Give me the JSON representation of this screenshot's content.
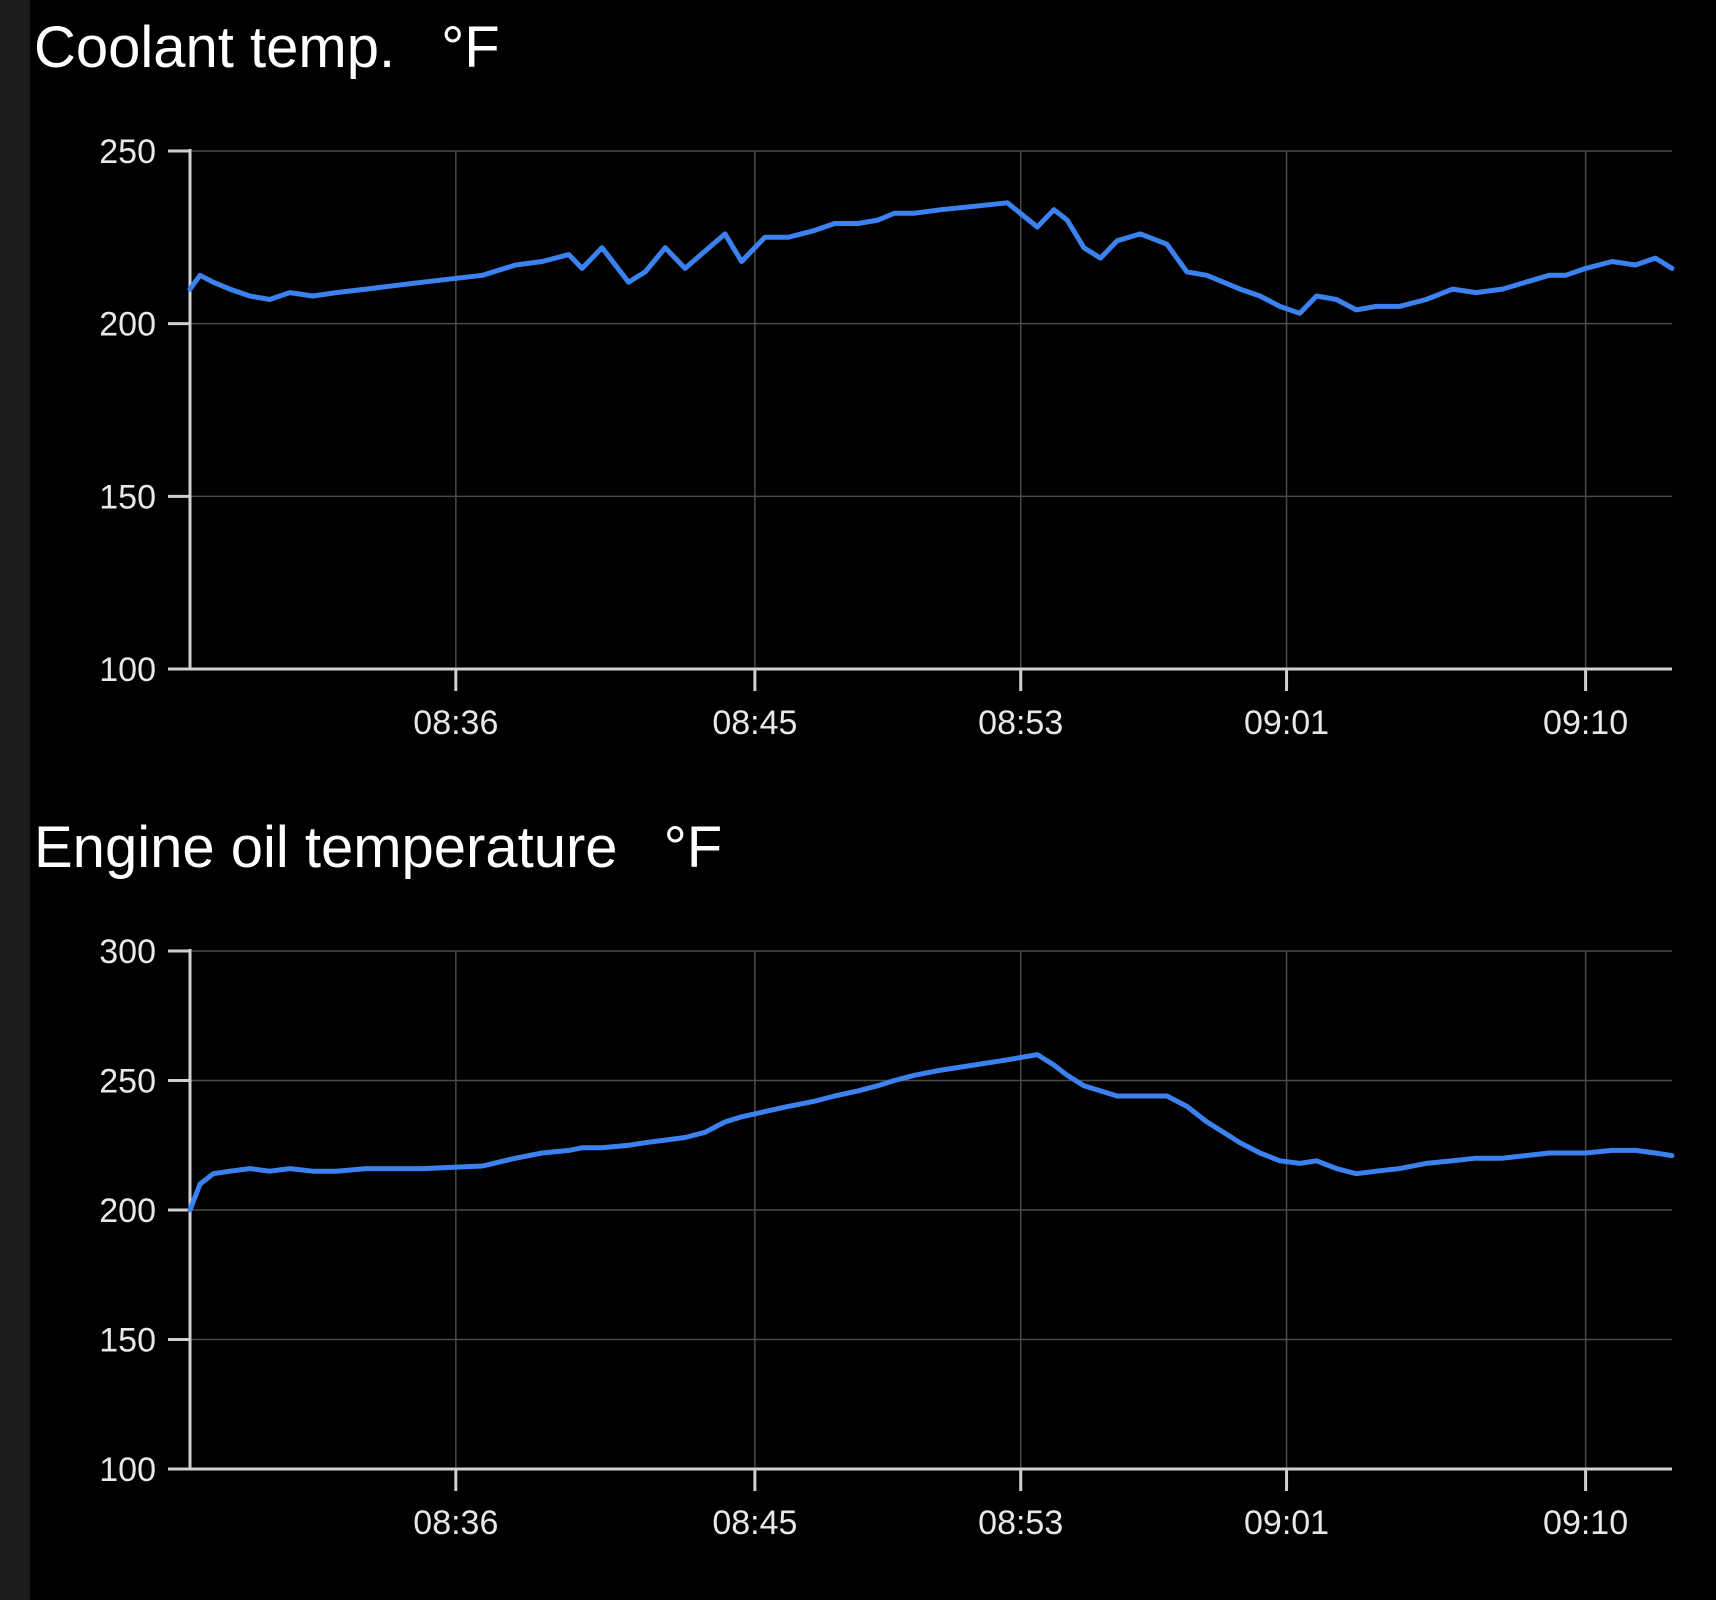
{
  "theme": {
    "background": "#000000",
    "series_color": "#3b82f0",
    "grid_color": "#4a4a4a",
    "axis_color": "#d0d0d0",
    "text_color": "#ffffff"
  },
  "chart_data": [
    {
      "type": "line",
      "title": "Coolant temp.",
      "unit": "°F",
      "x_tick_labels": [
        "08:36",
        "08:45",
        "08:53",
        "09:01",
        "09:10"
      ],
      "x_tick_minutes": [
        36,
        45,
        53,
        61,
        70
      ],
      "y_ticks": [
        100,
        150,
        200,
        250
      ],
      "ylim": [
        100,
        250
      ],
      "xlim_minutes": [
        28,
        72.6
      ],
      "grid": true,
      "series": [
        {
          "x_minutes": [
            28.0,
            28.3,
            28.7,
            29.2,
            29.8,
            30.4,
            31.0,
            31.7,
            32.4,
            33.3,
            35.0,
            36.8,
            37.8,
            38.6,
            39.4,
            39.8,
            40.4,
            41.2,
            41.7,
            42.3,
            42.9,
            43.5,
            44.1,
            44.6,
            45.3,
            46.0,
            46.8,
            47.4,
            48.1,
            48.7,
            49.2,
            49.8,
            50.6,
            51.6,
            52.6,
            53.5,
            54.0,
            54.4,
            54.9,
            55.4,
            55.9,
            56.6,
            57.4,
            58.0,
            58.6,
            59.1,
            59.6,
            60.2,
            60.8,
            61.4,
            61.9,
            62.5,
            63.1,
            63.7,
            64.4,
            65.2,
            66.0,
            66.7,
            67.5,
            68.2,
            68.9,
            69.4,
            70.0,
            70.8,
            71.5,
            72.1,
            72.6
          ],
          "values": [
            210,
            214,
            212,
            210,
            208,
            207,
            209,
            208,
            209,
            210,
            212,
            214,
            217,
            218,
            220,
            216,
            222,
            212,
            215,
            222,
            216,
            221,
            226,
            218,
            225,
            225,
            227,
            229,
            229,
            230,
            232,
            232,
            233,
            234,
            235,
            228,
            233,
            230,
            222,
            219,
            224,
            226,
            223,
            215,
            214,
            212,
            210,
            208,
            205,
            203,
            208,
            207,
            204,
            205,
            205,
            207,
            210,
            209,
            210,
            212,
            214,
            214,
            216,
            218,
            217,
            219,
            216
          ]
        }
      ]
    },
    {
      "type": "line",
      "title": "Engine oil temperature",
      "unit": "°F",
      "x_tick_labels": [
        "08:36",
        "08:45",
        "08:53",
        "09:01",
        "09:10"
      ],
      "x_tick_minutes": [
        36,
        45,
        53,
        61,
        70
      ],
      "y_ticks": [
        100,
        150,
        200,
        250,
        300
      ],
      "ylim": [
        100,
        300
      ],
      "xlim_minutes": [
        28,
        72.6
      ],
      "grid": true,
      "series": [
        {
          "x_minutes": [
            28.0,
            28.3,
            28.7,
            29.2,
            29.8,
            30.4,
            31.0,
            31.7,
            32.4,
            33.3,
            35.0,
            36.8,
            37.8,
            38.6,
            39.4,
            39.8,
            40.4,
            41.2,
            41.7,
            42.3,
            42.9,
            43.5,
            44.1,
            44.6,
            45.3,
            46.0,
            46.8,
            47.4,
            48.1,
            48.7,
            49.2,
            49.8,
            50.6,
            51.6,
            52.6,
            53.5,
            54.0,
            54.4,
            54.9,
            55.4,
            55.9,
            56.6,
            57.4,
            58.0,
            58.6,
            59.1,
            59.6,
            60.2,
            60.8,
            61.4,
            61.9,
            62.5,
            63.1,
            63.7,
            64.4,
            65.2,
            66.0,
            66.7,
            67.5,
            68.2,
            68.9,
            69.4,
            70.0,
            70.8,
            71.5,
            72.1,
            72.6
          ],
          "values": [
            200,
            210,
            214,
            215,
            216,
            215,
            216,
            215,
            215,
            216,
            216,
            217,
            220,
            222,
            223,
            224,
            224,
            225,
            226,
            227,
            228,
            230,
            234,
            236,
            238,
            240,
            242,
            244,
            246,
            248,
            250,
            252,
            254,
            256,
            258,
            260,
            256,
            252,
            248,
            246,
            244,
            244,
            244,
            240,
            234,
            230,
            226,
            222,
            219,
            218,
            219,
            216,
            214,
            215,
            216,
            218,
            219,
            220,
            220,
            221,
            222,
            222,
            222,
            223,
            223,
            222,
            221
          ]
        }
      ]
    }
  ]
}
